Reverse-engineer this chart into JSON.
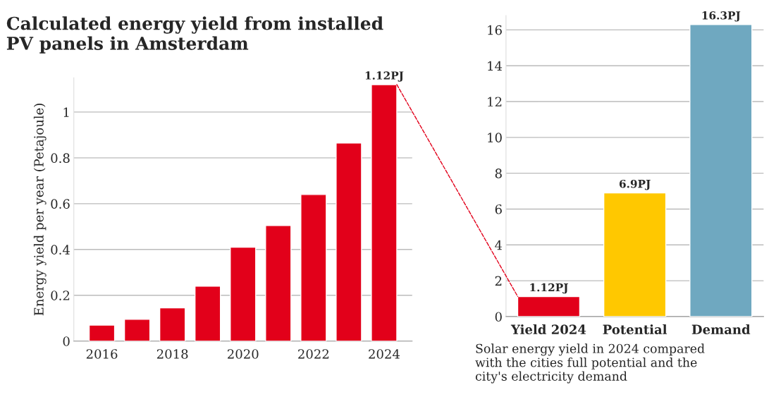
{
  "chart_data": [
    {
      "type": "bar",
      "title": "Calculated energy yield from installed\nPV panels in Amsterdam",
      "ylabel": "Energy yield per year (Petajoule)",
      "categories": [
        "2016",
        null,
        "2018",
        null,
        "2020",
        null,
        "2022",
        null,
        "2024"
      ],
      "values": [
        0.07,
        0.095,
        0.145,
        0.24,
        0.41,
        0.505,
        0.64,
        0.865,
        1.12
      ],
      "value_labels": [
        null,
        null,
        null,
        null,
        null,
        null,
        null,
        null,
        "1.12PJ"
      ],
      "color": "#e2001a",
      "ylim": [
        0,
        1.15
      ],
      "yticks": [
        0,
        0.2,
        0.4,
        0.6,
        0.8,
        1
      ],
      "grid": "y"
    },
    {
      "type": "bar",
      "categories": [
        "Yield 2024",
        "Potential",
        "Demand"
      ],
      "values": [
        1.12,
        6.9,
        16.3
      ],
      "value_labels": [
        "1.12PJ",
        "6.9PJ",
        "16.3PJ"
      ],
      "colors": [
        "#e2001a",
        "#ffc800",
        "#6fa8c0"
      ],
      "ylim": [
        0,
        16.8
      ],
      "yticks": [
        0,
        2,
        4,
        6,
        8,
        10,
        12,
        14,
        16
      ],
      "grid": "y",
      "annotations": [
        "Solar energy yield in 2024 compared\nwith the cities full potential and the\ncity's electricity demand"
      ]
    }
  ]
}
